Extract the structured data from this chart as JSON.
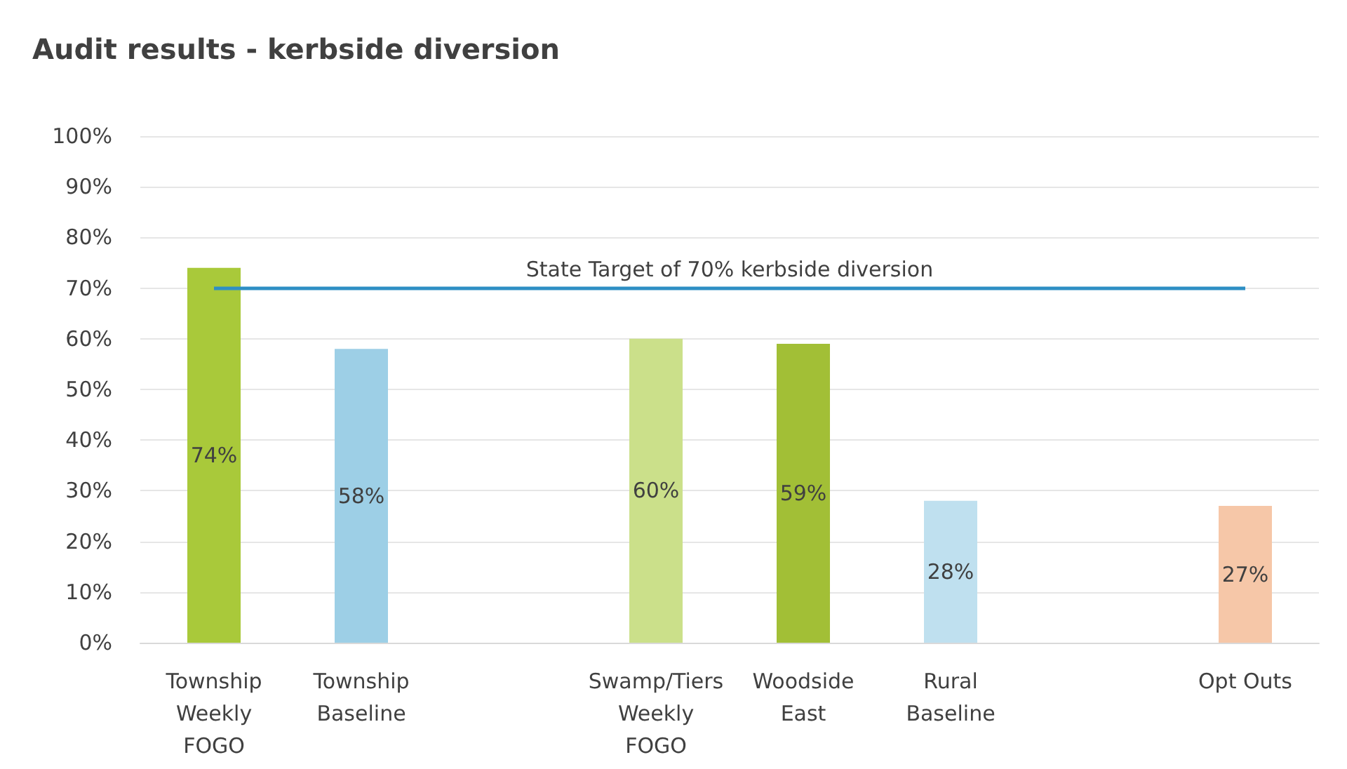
{
  "chart_data": {
    "type": "bar",
    "title": "Audit results - kerbside diversion",
    "categories": [
      "Township\nWeekly\nFOGO",
      "Township\nBaseline",
      null,
      "Swamp/Tiers\nWeekly\nFOGO",
      "Woodside\nEast",
      "Rural\nBaseline",
      null,
      "Opt Outs"
    ],
    "values": [
      74,
      58,
      null,
      60,
      59,
      28,
      null,
      27
    ],
    "value_labels": [
      "74%",
      "58%",
      null,
      "60%",
      "59%",
      "28%",
      null,
      "27%"
    ],
    "colors": [
      "#a9c93a",
      "#9dcfe6",
      "#cccccc",
      "#cbe08a",
      "#a2bf36",
      "#bfe0ef",
      "#cccccc",
      "#f6c7a8"
    ],
    "ylim": [
      0,
      100
    ],
    "yticks": [
      {
        "value": 0,
        "label": "0%"
      },
      {
        "value": 10,
        "label": "10%"
      },
      {
        "value": 20,
        "label": "20%"
      },
      {
        "value": 30,
        "label": "30%"
      },
      {
        "value": 40,
        "label": "40%"
      },
      {
        "value": 50,
        "label": "50%"
      },
      {
        "value": 60,
        "label": "60%"
      },
      {
        "value": 70,
        "label": "70%"
      },
      {
        "value": 80,
        "label": "80%"
      },
      {
        "value": 90,
        "label": "90%"
      },
      {
        "value": 100,
        "label": "100%"
      }
    ],
    "grid": "y",
    "ref_lines": [
      {
        "axis": "y",
        "value": 70,
        "label": "State Target of 70% kerbside diversion",
        "color": "#2e8fc4"
      }
    ]
  }
}
